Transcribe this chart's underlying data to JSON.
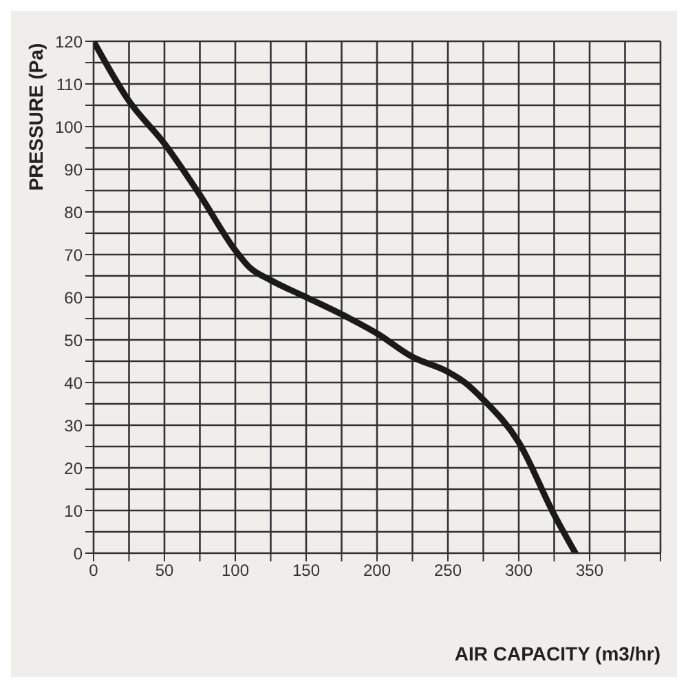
{
  "chart_data": {
    "type": "line",
    "xlabel": "AIR CAPACITY (m3/hr)",
    "ylabel": "PRESSURE (Pa)",
    "x": [
      0,
      25,
      50,
      75,
      100,
      110,
      125,
      150,
      175,
      200,
      225,
      250,
      262,
      275,
      300,
      325,
      340
    ],
    "series": [
      {
        "color": "#1a1a1a",
        "values": [
          120,
          106,
          96,
          84,
          71,
          67,
          64,
          60,
          56,
          51.5,
          46,
          42.5,
          40,
          36,
          26,
          9,
          0
        ]
      }
    ],
    "xlim": [
      0,
      400
    ],
    "xticks": [
      0,
      {
        "value": 25,
        "label": null
      },
      50,
      {
        "value": 75,
        "label": null
      },
      100,
      {
        "value": 125,
        "label": null
      },
      150,
      {
        "value": 175,
        "label": null
      },
      200,
      {
        "value": 225,
        "label": null
      },
      250,
      {
        "value": 275,
        "label": null
      },
      300,
      {
        "value": 325,
        "label": null
      },
      350,
      {
        "value": 375,
        "label": null
      },
      {
        "value": 400,
        "label": null
      }
    ],
    "ylim": [
      0,
      120
    ],
    "yticks": [
      0,
      {
        "value": 5,
        "label": null
      },
      10,
      {
        "value": 15,
        "label": null
      },
      20,
      {
        "value": 25,
        "label": null
      },
      30,
      {
        "value": 35,
        "label": null
      },
      40,
      {
        "value": 45,
        "label": null
      },
      50,
      {
        "value": 55,
        "label": null
      },
      60,
      {
        "value": 65,
        "label": null
      },
      70,
      {
        "value": 75,
        "label": null
      },
      80,
      {
        "value": 85,
        "label": null
      },
      90,
      {
        "value": 95,
        "label": null
      },
      100,
      {
        "value": 105,
        "label": null
      },
      110,
      {
        "value": 115,
        "label": null
      },
      120
    ],
    "grid": true,
    "marker": "none",
    "line_style": "solid",
    "legend": false
  }
}
